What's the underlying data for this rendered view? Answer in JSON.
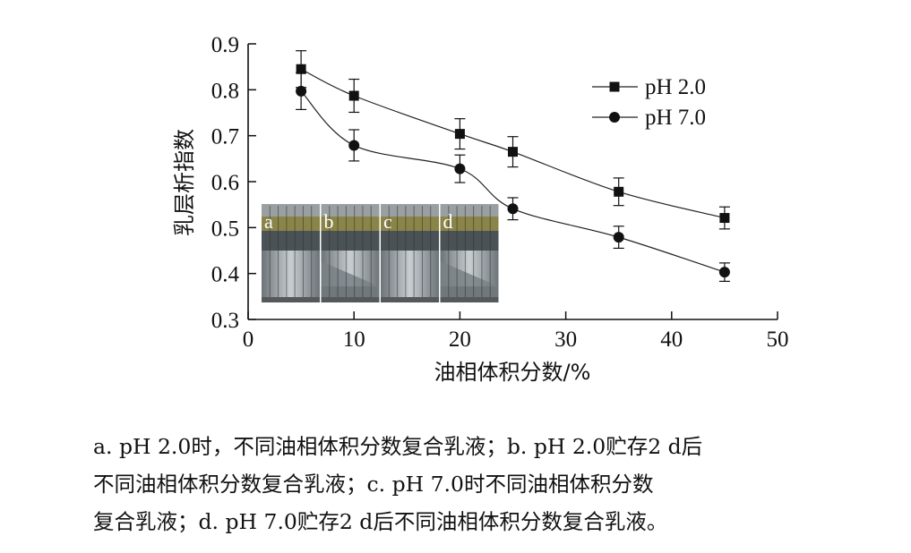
{
  "chart_data": {
    "type": "line",
    "xlabel": "油相体积分数/%",
    "ylabel": "乳层析指数",
    "xlim": [
      0,
      50
    ],
    "ylim": [
      0.3,
      0.9
    ],
    "x_ticks": [
      0,
      10,
      20,
      30,
      40,
      50
    ],
    "y_ticks": [
      0.3,
      0.4,
      0.5,
      0.6,
      0.7,
      0.8,
      0.9
    ],
    "legend_position": "top-right",
    "grid": false,
    "series": [
      {
        "name": "pH 2.0",
        "marker": "square",
        "x": [
          5,
          10,
          20,
          25,
          35,
          45
        ],
        "y": [
          0.845,
          0.787,
          0.704,
          0.665,
          0.578,
          0.521
        ],
        "error": [
          0.04,
          0.036,
          0.033,
          0.033,
          0.03,
          0.024
        ]
      },
      {
        "name": "pH 7.0",
        "marker": "circle",
        "x": [
          5,
          10,
          20,
          25,
          35,
          45
        ],
        "y": [
          0.797,
          0.679,
          0.628,
          0.541,
          0.479,
          0.403
        ],
        "error": [
          0.04,
          0.034,
          0.03,
          0.024,
          0.024,
          0.02
        ]
      }
    ],
    "inset_labels": [
      "a",
      "b",
      "c",
      "d"
    ]
  },
  "caption": {
    "lines": [
      "a. pH 2.0时，不同油相体积分数复合乳液；b. pH 2.0贮存2 d后",
      "不同油相体积分数复合乳液；c. pH 7.0时不同油相体积分数",
      "复合乳液；d. pH 7.0贮存2 d后不同油相体积分数复合乳液。"
    ]
  }
}
